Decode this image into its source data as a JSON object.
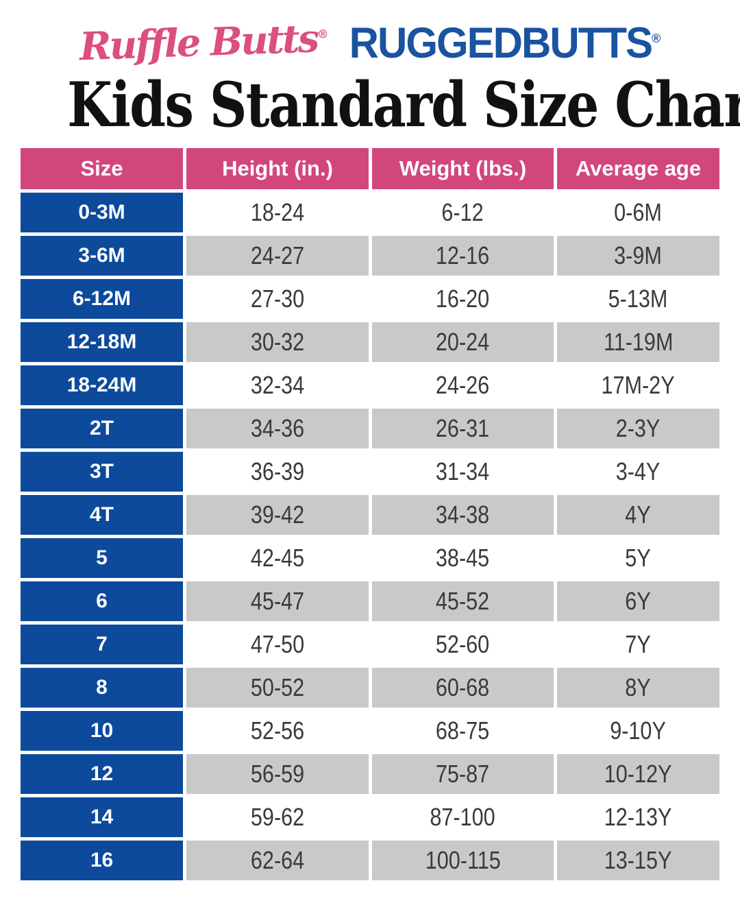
{
  "brand": {
    "rufflebutts_text": "Ruffle Butts",
    "ruggedbutts_text": "RUGGEDBUTTS",
    "registered_mark": "®",
    "rufflebutts_color": "#DB4F7F",
    "ruggedbutts_color": "#1A53A0"
  },
  "title": "Kids Standard Size Chart",
  "chart_data": {
    "type": "table",
    "title": "Kids Standard Size Chart",
    "columns": [
      "Size",
      "Height (in.)",
      "Weight (lbs.)",
      "Average age"
    ],
    "rows": [
      [
        "0-3M",
        "18-24",
        "6-12",
        "0-6M"
      ],
      [
        "3-6M",
        "24-27",
        "12-16",
        "3-9M"
      ],
      [
        "6-12M",
        "27-30",
        "16-20",
        "5-13M"
      ],
      [
        "12-18M",
        "30-32",
        "20-24",
        "11-19M"
      ],
      [
        "18-24M",
        "32-34",
        "24-26",
        "17M-2Y"
      ],
      [
        "2T",
        "34-36",
        "26-31",
        "2-3Y"
      ],
      [
        "3T",
        "36-39",
        "31-34",
        "3-4Y"
      ],
      [
        "4T",
        "39-42",
        "34-38",
        "4Y"
      ],
      [
        "5",
        "42-45",
        "38-45",
        "5Y"
      ],
      [
        "6",
        "45-47",
        "45-52",
        "6Y"
      ],
      [
        "7",
        "47-50",
        "52-60",
        "7Y"
      ],
      [
        "8",
        "50-52",
        "60-68",
        "8Y"
      ],
      [
        "10",
        "52-56",
        "68-75",
        "9-10Y"
      ],
      [
        "12",
        "56-59",
        "75-87",
        "10-12Y"
      ],
      [
        "14",
        "59-62",
        "87-100",
        "12-13Y"
      ],
      [
        "16",
        "62-64",
        "100-115",
        "13-15Y"
      ]
    ]
  },
  "colors": {
    "header_bg": "#D2477B",
    "size_column_bg": "#0D4A9C",
    "shaded_row_bg": "#C9C9C9",
    "data_text": "#3A3A3A",
    "title_text": "#111111"
  }
}
